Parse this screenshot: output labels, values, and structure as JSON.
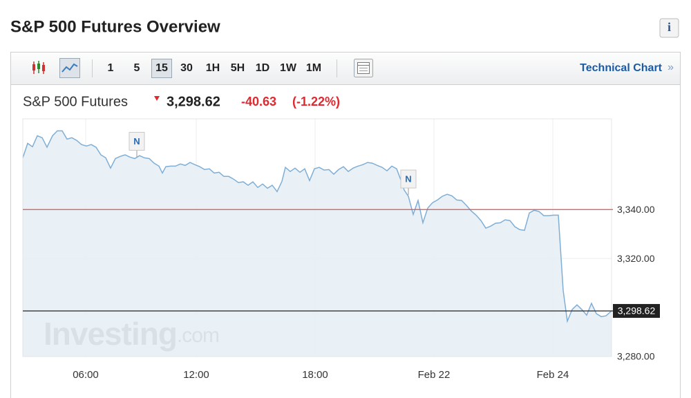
{
  "header": {
    "title": "S&P 500 Futures Overview",
    "info_icon": "i"
  },
  "toolbar": {
    "intervals": [
      "1",
      "5",
      "15",
      "30",
      "1H",
      "5H",
      "1D",
      "1W",
      "1M"
    ],
    "active_interval": 2,
    "link": "Technical Chart",
    "link_arrow": "»"
  },
  "quote": {
    "name": "S&P 500 Futures",
    "price": "3,298.62",
    "change": "-40.63",
    "change_percent": "(-1.22%)"
  },
  "watermark": {
    "brand": "Investing",
    "suffix": ".com"
  },
  "chart_data": {
    "type": "area",
    "color": "#7eaed6",
    "fill": "#e6eef5",
    "x": [
      0,
      7,
      14,
      21,
      28,
      35,
      43,
      50,
      57,
      64,
      71,
      78,
      85,
      92,
      99,
      106,
      113,
      120,
      127,
      134,
      141,
      148,
      155,
      162,
      169,
      176,
      183,
      190,
      197,
      202,
      207,
      214,
      221,
      228,
      235,
      242,
      249,
      256,
      263,
      270,
      277,
      284,
      291,
      298,
      305,
      312,
      319,
      326,
      333,
      340,
      347,
      354,
      361,
      368,
      375,
      380,
      387,
      394,
      401,
      408,
      415,
      422,
      429,
      436,
      443,
      450,
      457,
      464,
      471,
      478,
      485,
      492,
      499,
      506,
      513,
      520,
      527,
      534,
      541,
      547,
      552,
      558,
      565,
      572,
      579,
      586,
      593,
      600,
      607,
      614,
      621,
      628,
      635,
      642,
      649,
      656,
      663,
      670,
      677,
      684,
      691,
      698,
      705,
      712,
      719,
      726,
      733,
      740,
      747,
      754,
      761,
      768,
      775,
      782,
      788,
      795,
      802,
      809,
      816,
      823,
      830,
      837,
      844,
      852
    ],
    "values": [
      3361.1,
      3367.0,
      3365.6,
      3370.1,
      3369.3,
      3365.4,
      3370.1,
      3372.1,
      3372.1,
      3368.7,
      3369.3,
      3368.2,
      3366.5,
      3365.9,
      3366.5,
      3365.4,
      3362.3,
      3361.1,
      3356.9,
      3360.8,
      3361.7,
      3362.3,
      3361.4,
      3360.8,
      3362.0,
      3361.1,
      3360.8,
      3358.9,
      3357.7,
      3354.9,
      3357.5,
      3357.7,
      3357.7,
      3358.6,
      3358.0,
      3359.2,
      3358.3,
      3357.5,
      3356.3,
      3356.6,
      3354.9,
      3355.2,
      3353.5,
      3353.5,
      3352.4,
      3351.0,
      3351.3,
      3349.9,
      3351.3,
      3349.0,
      3350.4,
      3348.7,
      3349.9,
      3347.3,
      3351.5,
      3357.2,
      3355.5,
      3356.9,
      3355.2,
      3356.6,
      3351.8,
      3356.6,
      3357.2,
      3356.1,
      3356.3,
      3354.4,
      3356.3,
      3357.5,
      3355.5,
      3356.9,
      3357.7,
      3358.3,
      3359.2,
      3358.9,
      3358.0,
      3357.2,
      3355.8,
      3357.7,
      3356.6,
      3352.1,
      3347.9,
      3345.4,
      3338.0,
      3343.7,
      3334.6,
      3340.6,
      3342.8,
      3343.9,
      3345.4,
      3346.2,
      3345.6,
      3343.9,
      3343.7,
      3341.7,
      3339.4,
      3337.7,
      3335.5,
      3332.4,
      3333.2,
      3334.4,
      3334.6,
      3335.8,
      3335.5,
      3333.0,
      3331.8,
      3331.5,
      3338.6,
      3339.7,
      3339.2,
      3337.5,
      3337.5,
      3337.7,
      3337.7,
      3307.0,
      3294.4,
      3299.2,
      3301.1,
      3299.2,
      3296.9,
      3301.7,
      3297.5,
      3296.3,
      3296.6,
      3298.62
    ],
    "xlim": [
      0,
      852
    ],
    "ylim": [
      3280,
      3377
    ],
    "xticks": [
      {
        "value": 91,
        "label": "06:00"
      },
      {
        "value": 251,
        "label": "12:00"
      },
      {
        "value": 423,
        "label": "18:00"
      },
      {
        "value": 595,
        "label": "Feb 22"
      },
      {
        "value": 767,
        "label": "Feb 24"
      }
    ],
    "yticks": [
      {
        "value": 3280,
        "label": "3,280.00"
      },
      {
        "value": 3320,
        "label": "3,320.00"
      },
      {
        "value": 3340,
        "label": "3,340.00"
      }
    ],
    "reference_lines": [
      {
        "value": 3340,
        "color": "#d9534f"
      },
      {
        "value": 3298.62,
        "label": "3,298.62",
        "color": "#222222"
      }
    ],
    "annotations": [
      {
        "x": 165,
        "label": "N"
      },
      {
        "x": 558,
        "label": "N"
      }
    ],
    "grid": true
  }
}
